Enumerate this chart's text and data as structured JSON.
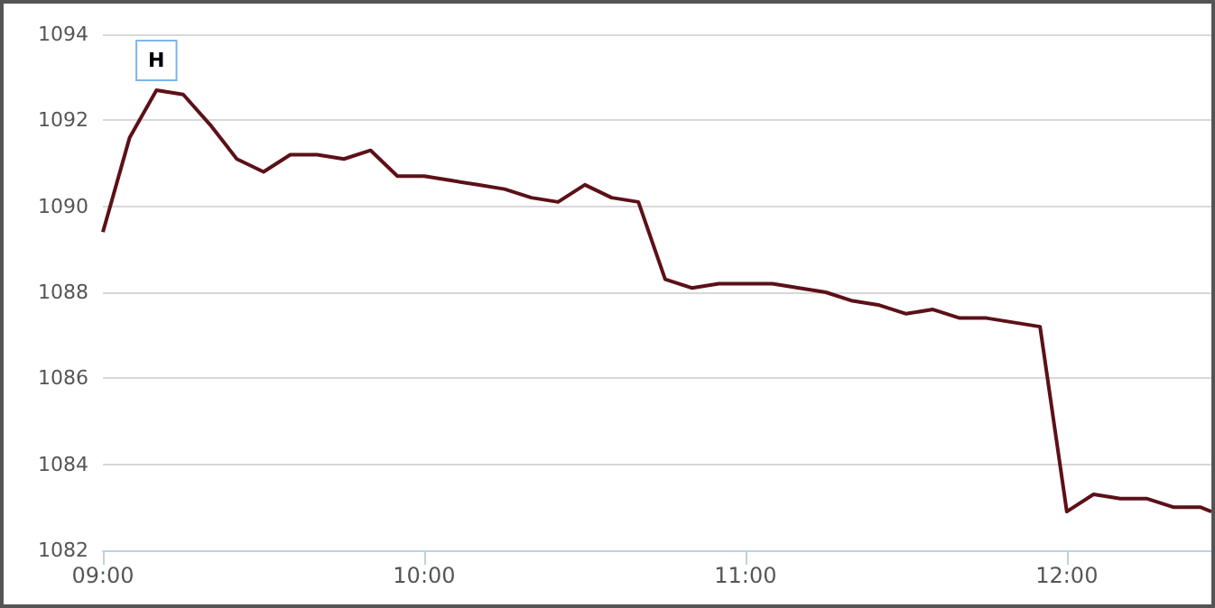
{
  "chart_data": {
    "type": "line",
    "x": [
      9,
      9.0833,
      9.1667,
      9.25,
      9.3333,
      9.4167,
      9.5,
      9.5833,
      9.6667,
      9.75,
      9.8333,
      9.9167,
      10,
      10.0833,
      10.1667,
      10.25,
      10.3333,
      10.4167,
      10.5,
      10.5833,
      10.6667,
      10.75,
      10.8333,
      10.9167,
      11,
      11.0833,
      11.1667,
      11.25,
      11.3333,
      11.4167,
      11.5,
      11.5833,
      11.6667,
      11.75,
      11.8333,
      11.9167,
      12,
      12.0833,
      12.1667,
      12.25,
      12.3333,
      12.4167,
      12.45
    ],
    "series": [
      {
        "color": "#5c1018",
        "values": [
          1089.4,
          1091.6,
          1092.7,
          1092.6,
          1091.9,
          1091.1,
          1090.8,
          1091.2,
          1091.2,
          1091.1,
          1091.3,
          1090.7,
          1090.7,
          1090.6,
          1090.5,
          1090.4,
          1090.2,
          1090.1,
          1090.5,
          1090.2,
          1090.1,
          1088.3,
          1088.1,
          1088.2,
          1088.2,
          1088.2,
          1088.1,
          1088.0,
          1087.8,
          1087.7,
          1087.5,
          1087.6,
          1087.4,
          1087.4,
          1087.3,
          1087.2,
          1082.9,
          1083.3,
          1083.2,
          1083.2,
          1083.0,
          1083.0,
          1082.9
        ]
      }
    ],
    "xlim": [
      9,
      12.45
    ],
    "xticks": [
      {
        "value": 9,
        "label": "09:00"
      },
      {
        "value": 10,
        "label": "10:00"
      },
      {
        "value": 11,
        "label": "11:00"
      },
      {
        "value": 12,
        "label": "12:00"
      }
    ],
    "ylim": [
      1082,
      1094
    ],
    "yticks": [
      1082,
      1084,
      1086,
      1088,
      1090,
      1092,
      1094
    ],
    "grid": "y",
    "annotations": [
      {
        "text": "H",
        "x": 9.1667,
        "y": 1092.7
      }
    ]
  }
}
